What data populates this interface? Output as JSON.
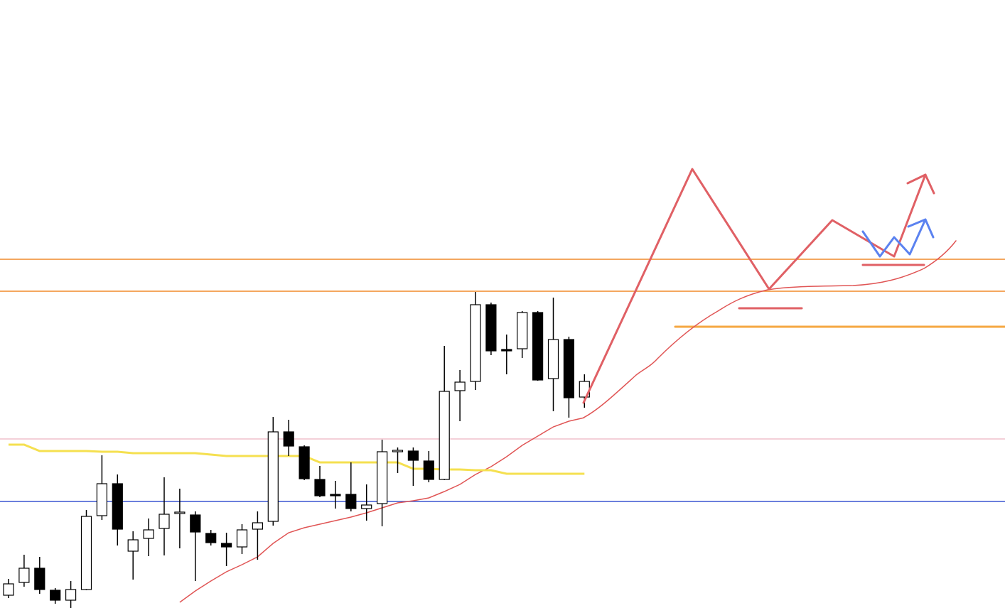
{
  "chart_data": {
    "type": "candlestick",
    "ylim": [
      0,
      856
    ],
    "up_color": "#ffffff",
    "down_color": "#000000",
    "open": [
      18,
      36,
      56,
      25,
      11,
      26,
      130,
      175,
      80,
      98,
      112,
      133,
      131,
      105,
      91,
      86,
      111,
      122,
      248,
      227,
      181,
      160,
      160,
      140,
      147,
      220,
      221,
      207,
      181,
      306,
      319,
      427,
      364,
      365,
      416,
      323,
      378,
      297
    ],
    "high": [
      41,
      75,
      72,
      28,
      38,
      138,
      215,
      188,
      108,
      126,
      184,
      168,
      136,
      110,
      106,
      118,
      136,
      269,
      265,
      229,
      200,
      179,
      205,
      174,
      237,
      226,
      226,
      221,
      369,
      335,
      445,
      430,
      385,
      418,
      418,
      437,
      382,
      329
    ],
    "low": [
      14,
      30,
      20,
      6,
      0,
      25,
      124,
      88,
      40,
      73,
      74,
      84,
      38,
      88,
      59,
      76,
      68,
      116,
      214,
      180,
      156,
      140,
      136,
      123,
      115,
      190,
      172,
      177,
      180,
      263,
      307,
      356,
      329,
      352,
      320,
      277,
      268,
      282
    ],
    "close": [
      34,
      56,
      26,
      11,
      26,
      129,
      175,
      111,
      96,
      110,
      132,
      135,
      107,
      92,
      86,
      110,
      120,
      248,
      228,
      182,
      158,
      158,
      140,
      145,
      220,
      222,
      208,
      181,
      305,
      318,
      427,
      362,
      362,
      416,
      321,
      378,
      296,
      319
    ],
    "lines": [
      {
        "color": "#e05555",
        "values": [
          null,
          null,
          null,
          null,
          null,
          null,
          null,
          null,
          null,
          null,
          null,
          8,
          24,
          38,
          51,
          61,
          72,
          91,
          106,
          113,
          118,
          123,
          128,
          134,
          141,
          148,
          151,
          155,
          164,
          174,
          188,
          199,
          213,
          229,
          242,
          255,
          263,
          268
        ]
      },
      {
        "color": "#f5e050",
        "values": [
          230,
          230,
          221,
          221,
          221,
          221,
          220,
          220,
          218,
          218,
          218,
          218,
          218,
          216,
          214,
          214,
          214,
          214,
          214,
          214,
          205,
          205,
          205,
          205,
          205,
          205,
          196,
          196,
          195,
          195,
          194,
          194,
          189,
          189,
          189,
          189,
          189,
          189
        ]
      }
    ],
    "levels": [
      {
        "value": 491,
        "color": "#f08a2a"
      },
      {
        "value": 446,
        "color": "#f08a2a"
      },
      {
        "value": 238,
        "color": "#f0c0cc"
      },
      {
        "value": 150,
        "color": "#3a55d0"
      }
    ]
  }
}
